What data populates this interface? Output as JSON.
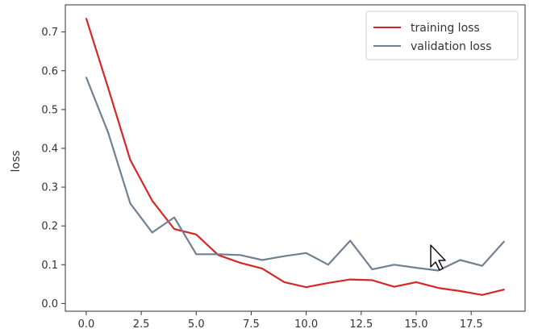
{
  "chart_data": {
    "type": "line",
    "title": "",
    "xlabel": "",
    "ylabel": "loss",
    "xlim": [
      -0.95,
      19.95
    ],
    "ylim": [
      -0.02,
      0.77
    ],
    "x_ticks": [
      0.0,
      2.5,
      5.0,
      7.5,
      10.0,
      12.5,
      15.0,
      17.5
    ],
    "x_tick_labels": [
      "0.0",
      "2.5",
      "5.0",
      "7.5",
      "10.0",
      "12.5",
      "15.0",
      "17.5"
    ],
    "y_ticks": [
      0.0,
      0.1,
      0.2,
      0.3,
      0.4,
      0.5,
      0.6,
      0.7
    ],
    "y_tick_labels": [
      "0.0",
      "0.1",
      "0.2",
      "0.3",
      "0.4",
      "0.5",
      "0.6",
      "0.7"
    ],
    "grid": false,
    "legend_position": "top-right",
    "x": [
      0,
      1,
      2,
      3,
      4,
      5,
      6,
      7,
      8,
      9,
      10,
      11,
      12,
      13,
      14,
      15,
      16,
      17,
      18,
      19
    ],
    "series": [
      {
        "name": "training loss",
        "color": "#d62728",
        "values": [
          0.735,
          0.555,
          0.37,
          0.265,
          0.192,
          0.178,
          0.125,
          0.105,
          0.09,
          0.055,
          0.042,
          0.053,
          0.062,
          0.06,
          0.043,
          0.055,
          0.04,
          0.032,
          0.022,
          0.036
        ]
      },
      {
        "name": "validation loss",
        "color": "#708090",
        "values": [
          0.583,
          0.44,
          0.258,
          0.183,
          0.222,
          0.127,
          0.127,
          0.125,
          0.112,
          0.122,
          0.13,
          0.1,
          0.162,
          0.088,
          0.1,
          0.092,
          0.085,
          0.112,
          0.097,
          0.16
        ]
      }
    ]
  },
  "cursor_icon": "mouse-pointer-icon"
}
